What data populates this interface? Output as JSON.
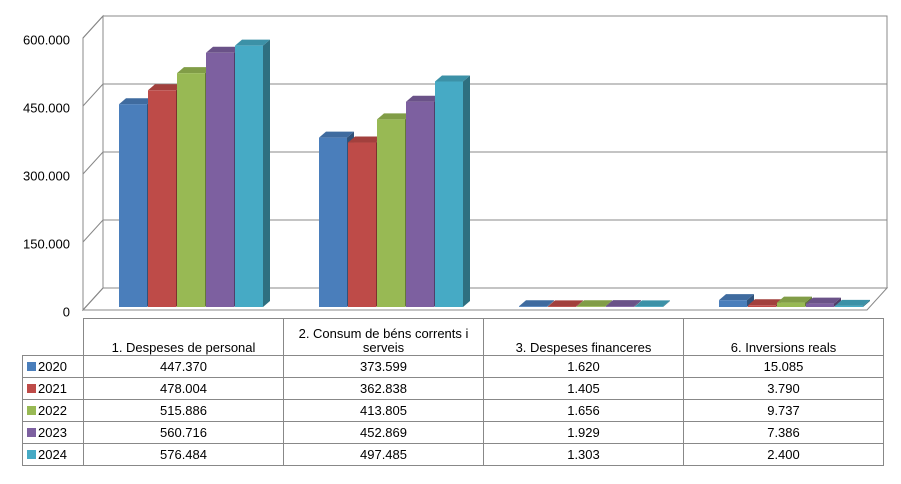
{
  "chart_data": {
    "type": "bar3d",
    "categories": [
      "1. Despeses de personal",
      "2. Consum de béns corrents i serveis",
      "3. Despeses financeres",
      "6. Inversions reals"
    ],
    "series": [
      {
        "name": "2020",
        "color": "#4a7ebb",
        "values": [
          447370,
          373599,
          1620,
          15085
        ],
        "value_labels": [
          "447.370",
          "373.599",
          "1.620",
          "15.085"
        ]
      },
      {
        "name": "2021",
        "color": "#be4b48",
        "values": [
          478004,
          362838,
          1405,
          3790
        ],
        "value_labels": [
          "478.004",
          "362.838",
          "1.405",
          "3.790"
        ]
      },
      {
        "name": "2022",
        "color": "#98b954",
        "values": [
          515886,
          413805,
          1656,
          9737
        ],
        "value_labels": [
          "515.886",
          "413.805",
          "1.656",
          "9.737"
        ]
      },
      {
        "name": "2023",
        "color": "#7d60a0",
        "values": [
          560716,
          452869,
          1929,
          7386
        ],
        "value_labels": [
          "560.716",
          "452.869",
          "1.929",
          "7.386"
        ]
      },
      {
        "name": "2024",
        "color": "#46aac5",
        "values": [
          576484,
          497485,
          1303,
          2400
        ],
        "value_labels": [
          "576.484",
          "497.485",
          "1.303",
          "2.400"
        ]
      }
    ],
    "ylim": [
      0,
      600000
    ],
    "yticks": [
      0,
      {
        "value": 150000,
        "label": "150.000"
      },
      {
        "value": 300000,
        "label": "300.000"
      },
      {
        "value": 450000,
        "label": "450.000"
      },
      {
        "value": 600000,
        "label": "600.000"
      }
    ],
    "grid": true
  }
}
